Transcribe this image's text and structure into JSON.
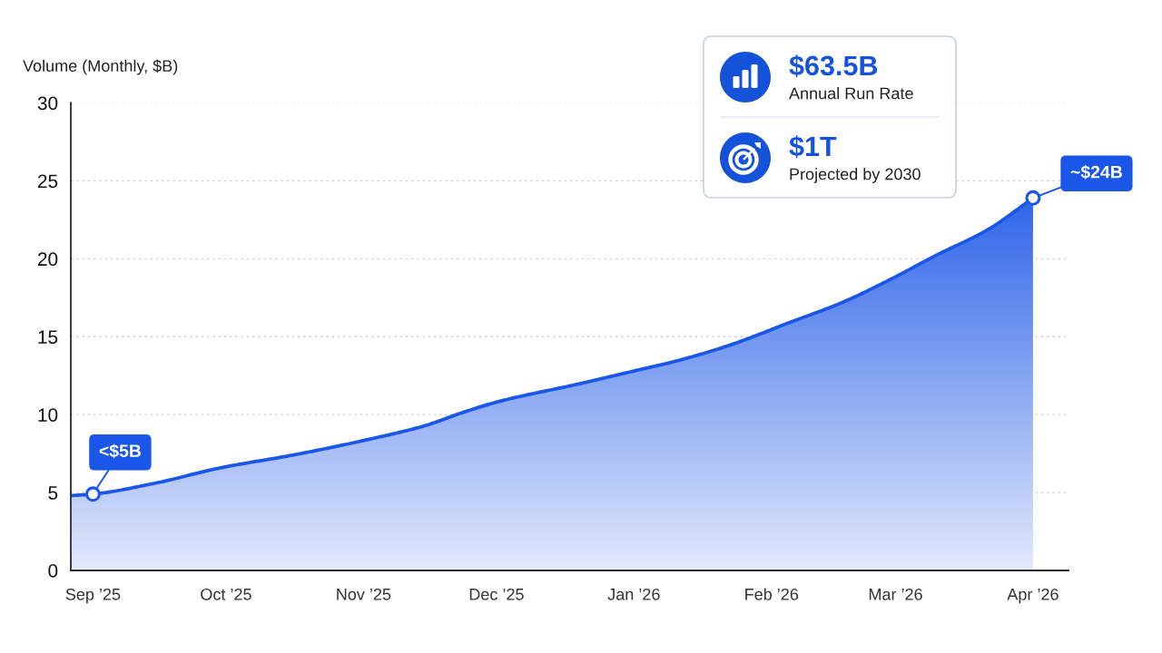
{
  "chart_data": {
    "type": "area",
    "ylabel": "Volume (Monthly, $B)",
    "x": [
      "2025-08-27",
      "2025-09-01",
      "2025-09-15",
      "2025-09-30",
      "2025-10-16",
      "2025-11-02",
      "2025-11-15",
      "2025-11-23",
      "2025-12-01",
      "2025-12-20",
      "2026-01-01",
      "2026-01-10",
      "2026-01-22",
      "2026-02-05",
      "2026-02-17",
      "2026-02-28",
      "2026-03-10",
      "2026-03-22",
      "2026-04-01"
    ],
    "series": [
      {
        "color": "#1a56e8",
        "values": [
          4.8,
          4.9,
          5.6,
          6.6,
          7.4,
          8.4,
          9.3,
          10.1,
          10.8,
          12.0,
          12.8,
          13.4,
          14.4,
          15.9,
          17.2,
          18.7,
          20.2,
          21.9,
          23.9
        ]
      }
    ],
    "xlim": [
      "2025-08-27",
      "2026-04-09"
    ],
    "xticks": [
      {
        "value": "2025-09-01",
        "label": "Sep ’25"
      },
      {
        "value": "2025-10-01",
        "label": "Oct ’25"
      },
      {
        "value": "2025-11-01",
        "label": "Nov ’25"
      },
      {
        "value": "2025-12-01",
        "label": "Dec ’25"
      },
      {
        "value": "2026-01-01",
        "label": "Jan ’26"
      },
      {
        "value": "2026-02-01",
        "label": "Feb ’26"
      },
      {
        "value": "2026-03-01",
        "label": "Mar ’26"
      },
      {
        "value": "2026-04-01",
        "label": "Apr ’26"
      }
    ],
    "ylim": [
      0,
      30
    ],
    "yticks": [
      0,
      5,
      10,
      15,
      20,
      25,
      30
    ],
    "grid": "y",
    "annotations": [
      {
        "text": "<$5B",
        "x": "2025-09-01",
        "y": 4.9
      },
      {
        "text": "~$24B",
        "x": "2026-04-01",
        "y": 23.9
      },
      "$63.5B",
      "Annual Run Rate",
      "$1T",
      "Projected by 2030"
    ]
  }
}
